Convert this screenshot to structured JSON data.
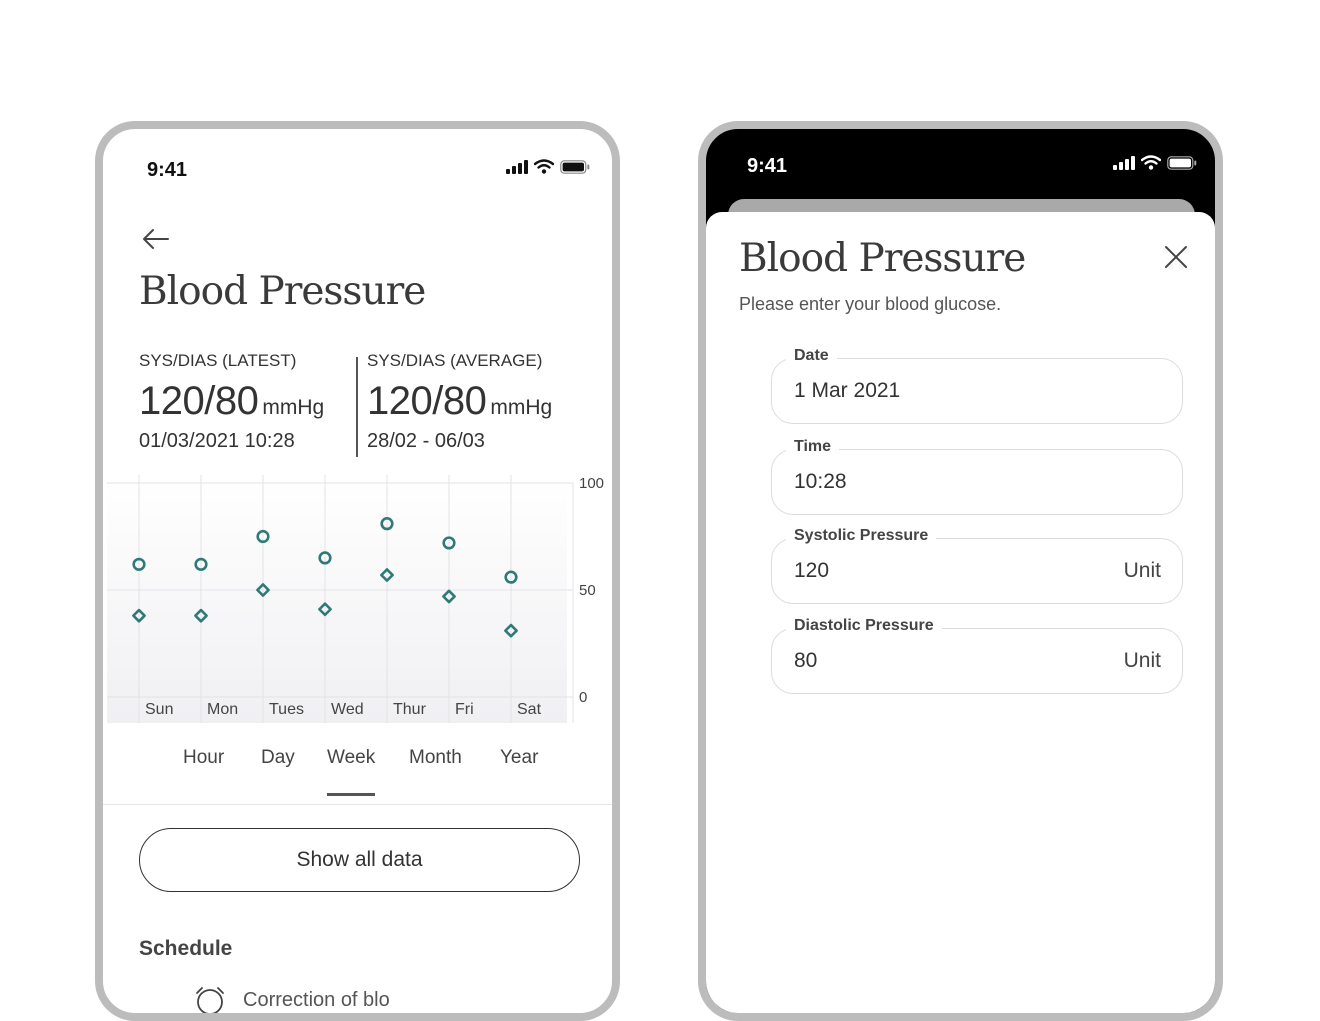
{
  "left_screen": {
    "status_time": "9:41",
    "title": "Blood Pressure",
    "latest": {
      "label": "SYS/DIAS (LATEST)",
      "value": "120/80",
      "unit": "mmHg",
      "sub": "01/03/2021 10:28"
    },
    "average": {
      "label": "SYS/DIAS (AVERAGE)",
      "value": "120/80",
      "unit": "mmHg",
      "sub": "28/02 - 06/03"
    },
    "tabs": [
      {
        "label": "Hour"
      },
      {
        "label": "Day"
      },
      {
        "label": "Week",
        "active": true
      },
      {
        "label": "Month"
      },
      {
        "label": "Year"
      }
    ],
    "show_all_label": "Show all data",
    "schedule_heading": "Schedule",
    "schedule_item_text": "Correction of blo",
    "schedule_item_icon": "alarm-clock-icon"
  },
  "right_screen": {
    "status_time": "9:41",
    "title": "Blood Pressure",
    "subtitle": "Please enter your blood glucose.",
    "fields": [
      {
        "label": "Date",
        "value": "1 Mar 2021",
        "unit": ""
      },
      {
        "label": "Time",
        "value": "10:28",
        "unit": ""
      },
      {
        "label": "Systolic Pressure",
        "value": "120",
        "unit": "Unit"
      },
      {
        "label": "Diastolic Pressure",
        "value": "80",
        "unit": "Unit"
      }
    ]
  },
  "chart_data": {
    "type": "scatter",
    "categories": [
      "Sun",
      "Mon",
      "Tues",
      "Wed",
      "Thur",
      "Fri",
      "Sat"
    ],
    "series": [
      {
        "marker": "circle",
        "values": [
          62,
          62,
          75,
          65,
          81,
          72,
          56
        ]
      },
      {
        "marker": "diamond",
        "values": [
          38,
          38,
          50,
          41,
          57,
          47,
          31
        ]
      }
    ],
    "ylim": [
      0,
      100
    ],
    "yticks": [
      0,
      50,
      100
    ],
    "y_axis_position": "right",
    "grid": true,
    "marker_color": "#2f7a78"
  }
}
